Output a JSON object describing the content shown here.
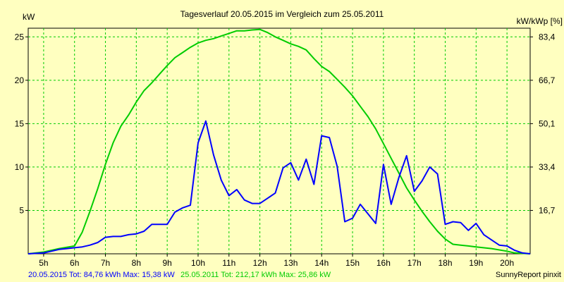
{
  "chart_data": {
    "type": "line",
    "title": "Tagesverlauf 20.05.2015 im Vergleich zum 25.05.2011",
    "ylabel": "kW",
    "y2label": "kW/kWp [%]",
    "xlim": [
      4.5,
      20.75
    ],
    "ylim": [
      0,
      26
    ],
    "grid": true,
    "x_ticks": [
      {
        "value": 5,
        "label": "5h"
      },
      {
        "value": 6,
        "label": "6h"
      },
      {
        "value": 7,
        "label": "7h"
      },
      {
        "value": 8,
        "label": "8h"
      },
      {
        "value": 9,
        "label": "9h"
      },
      {
        "value": 10,
        "label": "10h"
      },
      {
        "value": 11,
        "label": "11h"
      },
      {
        "value": 12,
        "label": "12h"
      },
      {
        "value": 13,
        "label": "13h"
      },
      {
        "value": 14,
        "label": "14h"
      },
      {
        "value": 15,
        "label": "15h"
      },
      {
        "value": 16,
        "label": "16h"
      },
      {
        "value": 17,
        "label": "17h"
      },
      {
        "value": 18,
        "label": "18h"
      },
      {
        "value": 19,
        "label": "19h"
      },
      {
        "value": 20,
        "label": "20h"
      }
    ],
    "y_ticks": [
      {
        "value": 5,
        "label": "5"
      },
      {
        "value": 10,
        "label": "10"
      },
      {
        "value": 15,
        "label": "15"
      },
      {
        "value": 20,
        "label": "20"
      },
      {
        "value": 25,
        "label": "25"
      }
    ],
    "y2_ticks": [
      {
        "value": 5,
        "label": "16,7"
      },
      {
        "value": 10,
        "label": "33,4"
      },
      {
        "value": 15,
        "label": "50,1"
      },
      {
        "value": 20,
        "label": "66,7"
      },
      {
        "value": 25,
        "label": "83,4"
      }
    ],
    "series": [
      {
        "name": "20.05.2015",
        "color": "#0000ff",
        "points": [
          [
            4.5,
            0
          ],
          [
            5.0,
            0.1
          ],
          [
            5.25,
            0.3
          ],
          [
            5.5,
            0.5
          ],
          [
            5.75,
            0.6
          ],
          [
            6.0,
            0.7
          ],
          [
            6.25,
            0.8
          ],
          [
            6.5,
            1.0
          ],
          [
            6.75,
            1.3
          ],
          [
            7.0,
            1.9
          ],
          [
            7.25,
            2.0
          ],
          [
            7.5,
            2.0
          ],
          [
            7.75,
            2.2
          ],
          [
            8.0,
            2.3
          ],
          [
            8.25,
            2.6
          ],
          [
            8.5,
            3.4
          ],
          [
            8.75,
            3.4
          ],
          [
            9.0,
            3.4
          ],
          [
            9.25,
            4.8
          ],
          [
            9.5,
            5.3
          ],
          [
            9.75,
            5.6
          ],
          [
            10.0,
            12.8
          ],
          [
            10.25,
            15.3
          ],
          [
            10.5,
            11.4
          ],
          [
            10.75,
            8.5
          ],
          [
            11.0,
            6.7
          ],
          [
            11.25,
            7.4
          ],
          [
            11.5,
            6.2
          ],
          [
            11.75,
            5.8
          ],
          [
            12.0,
            5.8
          ],
          [
            12.25,
            6.4
          ],
          [
            12.5,
            7.0
          ],
          [
            12.75,
            9.9
          ],
          [
            13.0,
            10.5
          ],
          [
            13.25,
            8.5
          ],
          [
            13.5,
            10.9
          ],
          [
            13.75,
            8.0
          ],
          [
            14.0,
            13.6
          ],
          [
            14.25,
            13.4
          ],
          [
            14.5,
            10.1
          ],
          [
            14.75,
            3.7
          ],
          [
            15.0,
            4.1
          ],
          [
            15.25,
            5.7
          ],
          [
            15.5,
            4.6
          ],
          [
            15.75,
            3.5
          ],
          [
            16.0,
            10.3
          ],
          [
            16.25,
            5.7
          ],
          [
            16.5,
            8.8
          ],
          [
            16.75,
            11.3
          ],
          [
            17.0,
            7.2
          ],
          [
            17.25,
            8.4
          ],
          [
            17.5,
            10.0
          ],
          [
            17.75,
            9.2
          ],
          [
            18.0,
            3.4
          ],
          [
            18.25,
            3.7
          ],
          [
            18.5,
            3.6
          ],
          [
            18.75,
            2.7
          ],
          [
            19.0,
            3.5
          ],
          [
            19.25,
            2.2
          ],
          [
            19.5,
            1.6
          ],
          [
            19.75,
            1.0
          ],
          [
            20.0,
            0.9
          ],
          [
            20.25,
            0.4
          ],
          [
            20.5,
            0.1
          ],
          [
            20.75,
            0
          ]
        ]
      },
      {
        "name": "25.05.2011",
        "color": "#00cc00",
        "points": [
          [
            4.5,
            0
          ],
          [
            5.0,
            0.2
          ],
          [
            5.5,
            0.6
          ],
          [
            6.0,
            0.9
          ],
          [
            6.25,
            2.5
          ],
          [
            6.5,
            4.9
          ],
          [
            6.75,
            7.5
          ],
          [
            7.0,
            10.3
          ],
          [
            7.25,
            12.8
          ],
          [
            7.5,
            14.7
          ],
          [
            7.75,
            16.0
          ],
          [
            8.0,
            17.5
          ],
          [
            8.25,
            18.8
          ],
          [
            8.5,
            19.7
          ],
          [
            8.75,
            20.7
          ],
          [
            9.0,
            21.7
          ],
          [
            9.25,
            22.6
          ],
          [
            9.5,
            23.2
          ],
          [
            9.75,
            23.8
          ],
          [
            10.0,
            24.3
          ],
          [
            10.25,
            24.6
          ],
          [
            10.5,
            24.8
          ],
          [
            10.75,
            25.1
          ],
          [
            11.0,
            25.4
          ],
          [
            11.25,
            25.7
          ],
          [
            11.5,
            25.7
          ],
          [
            11.75,
            25.8
          ],
          [
            12.0,
            25.86
          ],
          [
            12.25,
            25.5
          ],
          [
            12.5,
            25.0
          ],
          [
            12.75,
            24.6
          ],
          [
            13.0,
            24.2
          ],
          [
            13.25,
            23.9
          ],
          [
            13.5,
            23.5
          ],
          [
            13.75,
            22.5
          ],
          [
            14.0,
            21.6
          ],
          [
            14.25,
            21.0
          ],
          [
            14.5,
            20.1
          ],
          [
            14.75,
            19.2
          ],
          [
            15.0,
            18.2
          ],
          [
            15.25,
            17.0
          ],
          [
            15.5,
            15.8
          ],
          [
            15.75,
            14.4
          ],
          [
            16.0,
            12.7
          ],
          [
            16.25,
            11.0
          ],
          [
            16.5,
            9.3
          ],
          [
            16.75,
            7.6
          ],
          [
            17.0,
            6.2
          ],
          [
            17.25,
            4.9
          ],
          [
            17.5,
            3.7
          ],
          [
            17.75,
            2.6
          ],
          [
            18.0,
            1.7
          ],
          [
            18.25,
            1.1
          ],
          [
            18.5,
            1.0
          ],
          [
            18.75,
            0.9
          ],
          [
            19.0,
            0.8
          ],
          [
            19.5,
            0.6
          ],
          [
            20.0,
            0.3
          ],
          [
            20.25,
            0.1
          ],
          [
            20.75,
            0
          ]
        ]
      }
    ]
  },
  "footer": {
    "blue_text": "20.05.2015 Tot: 84,76 kWh Max: 15,38 kW",
    "green_text": "25.05.2011 Tot: 212,17 kWh Max: 25,86 kW",
    "credit": "SunnyReport pinxit"
  }
}
